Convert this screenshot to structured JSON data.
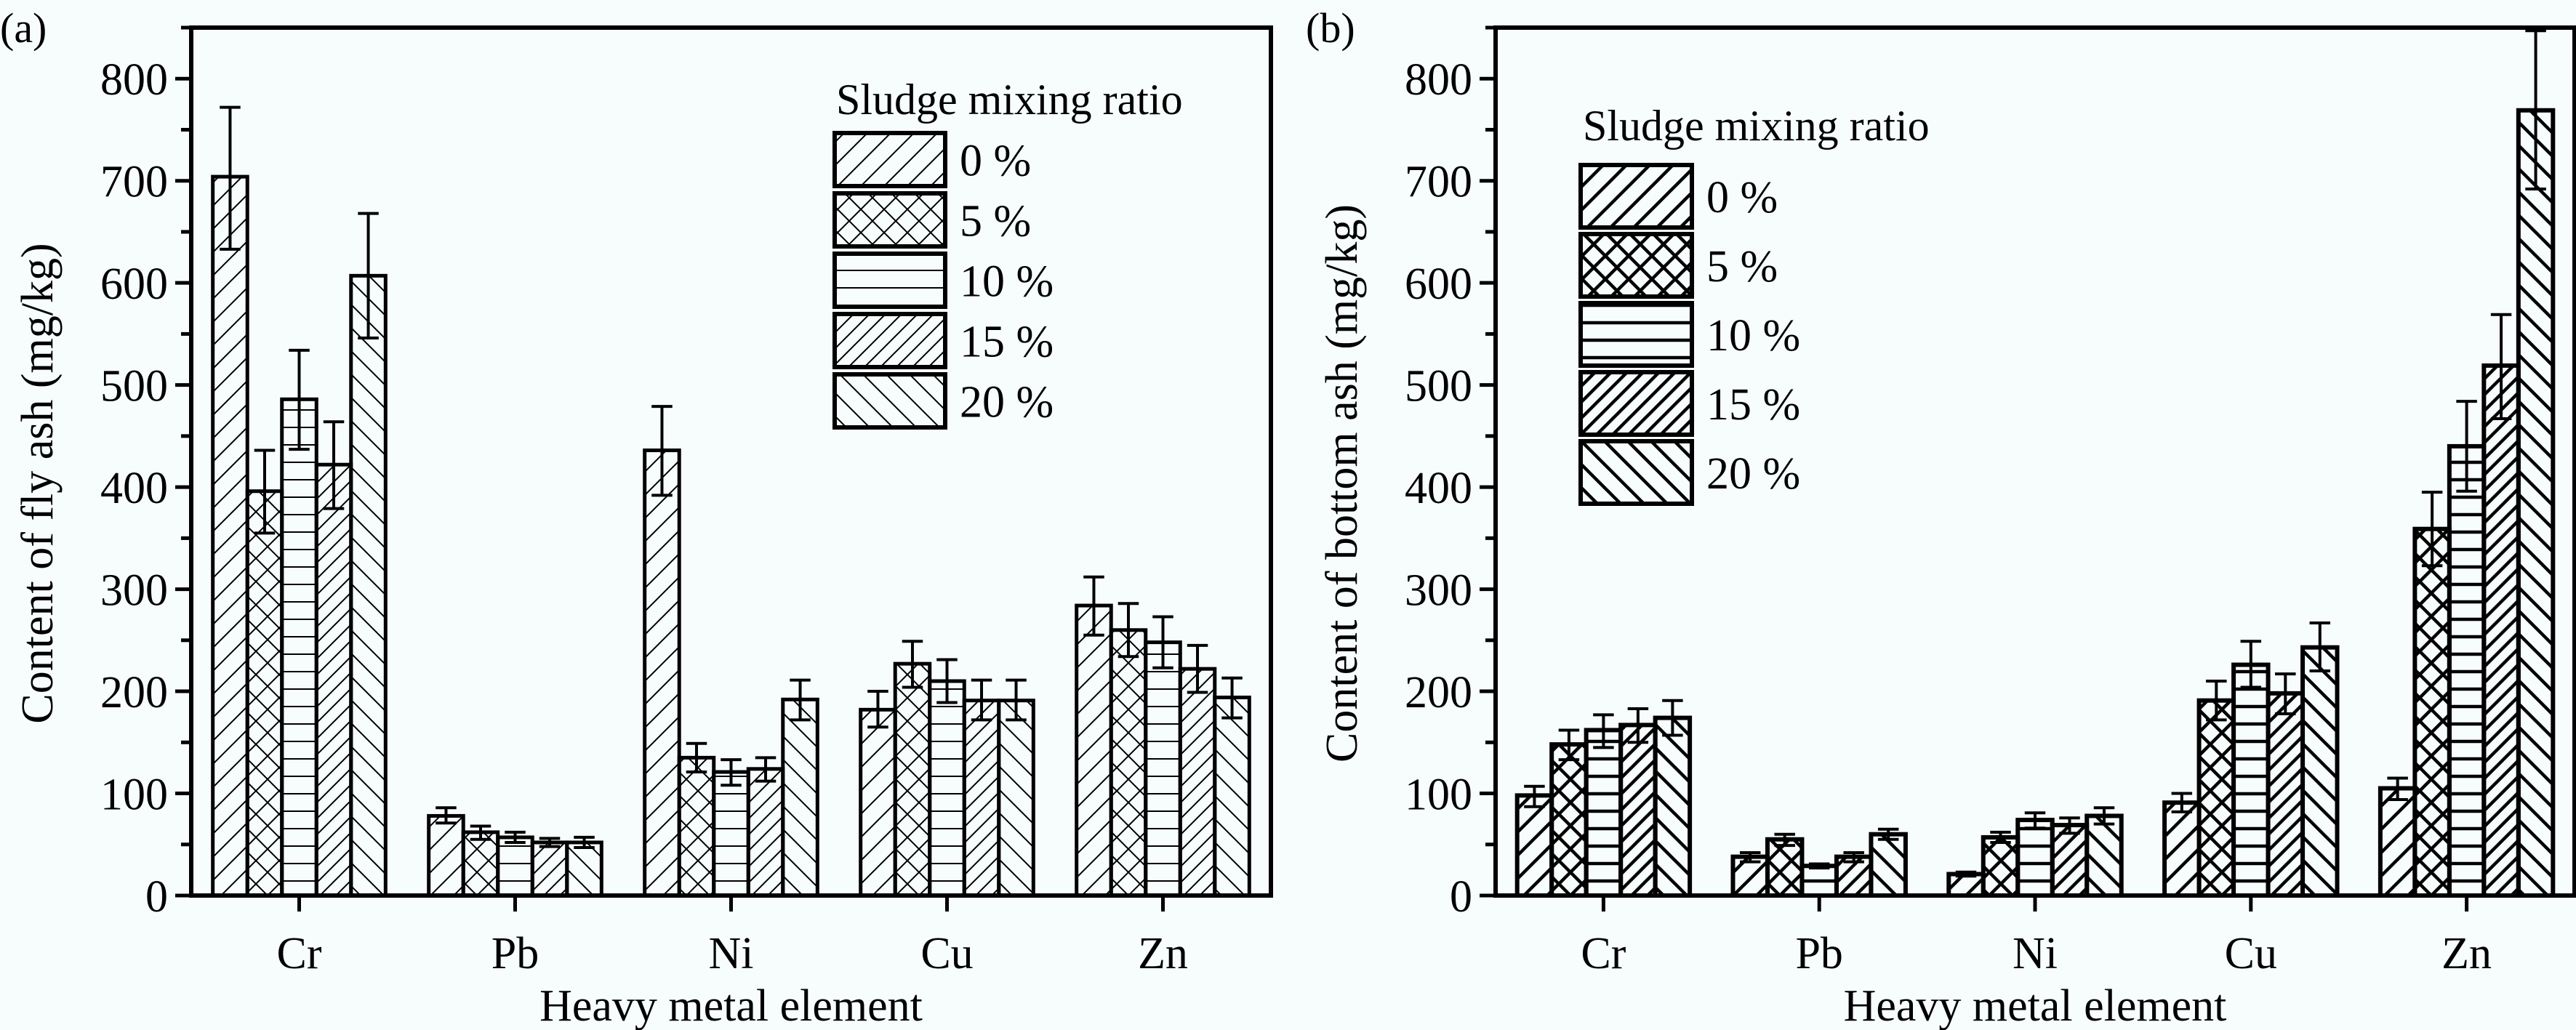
{
  "chart_data": [
    {
      "type": "bar",
      "panel_label": "(a)",
      "title": "",
      "xlabel": "Heavy metal element",
      "ylabel": "Content of fly ash (mg/kg)",
      "ylim": [
        0,
        850
      ],
      "yticks": [
        0,
        100,
        200,
        300,
        400,
        500,
        600,
        700,
        800
      ],
      "minor_tick_step": 50,
      "grid": false,
      "categories": [
        "Cr",
        "Pb",
        "Ni",
        "Cu",
        "Zn"
      ],
      "legend": {
        "title": "Sludge mixing ratio",
        "placement": "top-right"
      },
      "series": [
        {
          "name": "0 %",
          "pattern": "diag-forward-sparse",
          "values": [
            704,
            78,
            436,
            182,
            284
          ],
          "error_upper": [
            772,
            86,
            479,
            200,
            312
          ],
          "error_lower": [
            633,
            71,
            392,
            165,
            255
          ]
        },
        {
          "name": "5 %",
          "pattern": "crosshatch",
          "values": [
            396,
            62,
            135,
            227,
            260
          ],
          "error_upper": [
            436,
            68,
            149,
            249,
            286
          ],
          "error_lower": [
            355,
            55,
            121,
            204,
            234
          ]
        },
        {
          "name": "10 %",
          "pattern": "horizontal",
          "values": [
            486,
            57,
            121,
            210,
            248
          ],
          "error_upper": [
            534,
            62,
            133,
            231,
            273
          ],
          "error_lower": [
            437,
            52,
            108,
            189,
            223
          ]
        },
        {
          "name": "15 %",
          "pattern": "diag-forward-dense",
          "values": [
            422,
            52,
            124,
            191,
            222
          ],
          "error_upper": [
            464,
            56,
            135,
            211,
            245
          ],
          "error_lower": [
            379,
            48,
            112,
            172,
            199
          ]
        },
        {
          "name": "20 %",
          "pattern": "diag-back",
          "values": [
            607,
            52,
            192,
            191,
            194
          ],
          "error_upper": [
            668,
            57,
            211,
            211,
            213
          ],
          "error_lower": [
            546,
            47,
            172,
            172,
            174
          ]
        }
      ]
    },
    {
      "type": "bar",
      "panel_label": "(b)",
      "title": "",
      "xlabel": "Heavy metal element",
      "ylabel": "Content of bottom ash (mg/kg)",
      "ylim": [
        0,
        850
      ],
      "yticks": [
        0,
        100,
        200,
        300,
        400,
        500,
        600,
        700,
        800
      ],
      "minor_tick_step": 50,
      "grid": false,
      "categories": [
        "Cr",
        "Pb",
        "Ni",
        "Cu",
        "Zn"
      ],
      "legend": {
        "title": "Sludge mixing ratio",
        "placement": "top-left"
      },
      "series": [
        {
          "name": "0 %",
          "pattern": "diag-forward-sparse",
          "values": [
            98,
            38,
            21,
            91,
            105
          ],
          "error_upper": [
            107,
            42,
            23,
            100,
            115
          ],
          "error_lower": [
            87,
            33,
            19,
            82,
            94
          ]
        },
        {
          "name": "5 %",
          "pattern": "crosshatch",
          "values": [
            148,
            55,
            57,
            191,
            359
          ],
          "error_upper": [
            162,
            60,
            62,
            210,
            395
          ],
          "error_lower": [
            133,
            49,
            52,
            172,
            323
          ]
        },
        {
          "name": "10 %",
          "pattern": "horizontal",
          "values": [
            162,
            29,
            74,
            226,
            440
          ],
          "error_upper": [
            177,
            31,
            81,
            249,
            484
          ],
          "error_lower": [
            145,
            27,
            66,
            204,
            396
          ]
        },
        {
          "name": "15 %",
          "pattern": "diag-forward-dense",
          "values": [
            167,
            38,
            69,
            198,
            519
          ],
          "error_upper": [
            183,
            42,
            76,
            217,
            569
          ],
          "error_lower": [
            150,
            33,
            61,
            178,
            467
          ]
        },
        {
          "name": "20 %",
          "pattern": "diag-back",
          "values": [
            174,
            60,
            78,
            243,
            769
          ],
          "error_upper": [
            191,
            65,
            86,
            267,
            847
          ],
          "error_lower": [
            157,
            55,
            70,
            220,
            692
          ]
        }
      ]
    }
  ]
}
